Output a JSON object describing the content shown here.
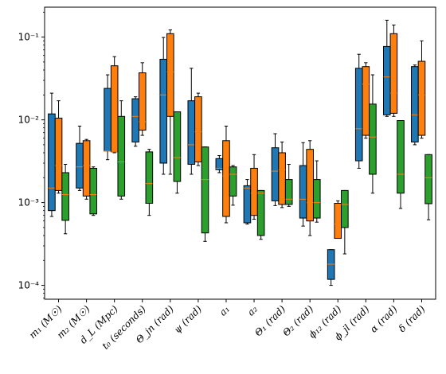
{
  "chart_data": {
    "type": "boxplot",
    "yscale": "log",
    "ylim": [
      6.8e-05,
      0.23
    ],
    "yticks": [
      {
        "value": 0.0001,
        "label": "10⁻⁴"
      },
      {
        "value": 0.001,
        "label": "10⁻³"
      },
      {
        "value": 0.01,
        "label": "10⁻²"
      },
      {
        "value": 0.1,
        "label": "10⁻¹"
      }
    ],
    "categories": [
      "m₁ (M☉)",
      "m₂ (M☉)",
      "d_L (Mpc)",
      "t₀ (seconds)",
      "Θ_jn (rad)",
      "ψ (rad)",
      "a₁",
      "a₂",
      "Θ₁ (rad)",
      "Θ₂ (rad)",
      "ϕ₁₂ (rad)",
      "ϕ_jl (rad)",
      "α (rad)",
      "δ (rad)"
    ],
    "series": [
      {
        "color": "#1f77b4",
        "boxes": [
          {
            "whislo": 0.00068,
            "q1": 0.0008,
            "med": 0.0015,
            "q3": 0.0118,
            "whishi": 0.021
          },
          {
            "whislo": 0.0014,
            "q1": 0.0015,
            "med": 0.0027,
            "q3": 0.0052,
            "whishi": 0.0084
          },
          {
            "whislo": 0.0033,
            "q1": 0.0042,
            "med": 0.0042,
            "q3": 0.024,
            "whishi": 0.035
          },
          {
            "whislo": 0.0048,
            "q1": 0.0054,
            "med": 0.011,
            "q3": 0.018,
            "whishi": 0.019
          },
          {
            "whislo": 0.0022,
            "q1": 0.003,
            "med": 0.02,
            "q3": 0.054,
            "whishi": 0.099
          },
          {
            "whislo": 0.0022,
            "q1": 0.0029,
            "med": 0.005,
            "q3": 0.017,
            "whishi": 0.042
          },
          {
            "whislo": 0.0023,
            "q1": 0.0025,
            "med": 0.0026,
            "q3": 0.0034,
            "whishi": 0.0037
          },
          {
            "whislo": 0.00055,
            "q1": 0.00057,
            "med": 0.0015,
            "q3": 0.0016,
            "whishi": 0.0019
          },
          {
            "whislo": 0.00092,
            "q1": 0.00105,
            "med": 0.0024,
            "q3": 0.0046,
            "whishi": 0.0068
          },
          {
            "whislo": 0.00052,
            "q1": 0.00065,
            "med": 0.0011,
            "q3": 0.0028,
            "whishi": 0.0053
          },
          {
            "whislo": 0.0001,
            "q1": 0.000118,
            "med": 0.00018,
            "q3": 0.00027,
            "whishi": 0.00027
          },
          {
            "whislo": 0.0026,
            "q1": 0.0032,
            "med": 0.0078,
            "q3": 0.042,
            "whishi": 0.062
          },
          {
            "whislo": 0.011,
            "q1": 0.0115,
            "med": 0.033,
            "q3": 0.077,
            "whishi": 0.16
          },
          {
            "whislo": 0.005,
            "q1": 0.0054,
            "med": 0.0115,
            "q3": 0.044,
            "whishi": 0.046
          }
        ]
      },
      {
        "color": "#ff7f0e",
        "boxes": [
          {
            "whislo": 0.0013,
            "q1": 0.0014,
            "med": 0.0028,
            "q3": 0.0105,
            "whishi": 0.017
          },
          {
            "whislo": 0.0011,
            "q1": 0.0012,
            "med": 0.0028,
            "q3": 0.0056,
            "whishi": 0.0058
          },
          {
            "whislo": 0.004,
            "q1": 0.0041,
            "med": 0.0041,
            "q3": 0.045,
            "whishi": 0.058
          },
          {
            "whislo": 0.0065,
            "q1": 0.0075,
            "med": 0.0095,
            "q3": 0.037,
            "whishi": 0.049
          },
          {
            "whislo": 0.0022,
            "q1": 0.011,
            "med": 0.038,
            "q3": 0.11,
            "whishi": 0.122
          },
          {
            "whislo": 0.0028,
            "q1": 0.0031,
            "med": 0.0072,
            "q3": 0.019,
            "whishi": 0.021
          },
          {
            "whislo": 0.00057,
            "q1": 0.00068,
            "med": 0.0021,
            "q3": 0.0056,
            "whishi": 0.0084
          },
          {
            "whislo": 0.00063,
            "q1": 0.0007,
            "med": 0.0013,
            "q3": 0.0026,
            "whishi": 0.0038
          },
          {
            "whislo": 0.00087,
            "q1": 0.00095,
            "med": 0.0025,
            "q3": 0.004,
            "whishi": 0.0054
          },
          {
            "whislo": 0.0004,
            "q1": 0.0006,
            "med": 0.001,
            "q3": 0.0044,
            "whishi": 0.0056
          },
          {
            "whislo": 0.00037,
            "q1": 0.00037,
            "med": 0.00055,
            "q3": 0.00098,
            "whishi": 0.00105
          },
          {
            "whislo": 0.006,
            "q1": 0.0065,
            "med": 0.027,
            "q3": 0.044,
            "whishi": 0.049
          },
          {
            "whislo": 0.011,
            "q1": 0.012,
            "med": 0.021,
            "q3": 0.11,
            "whishi": 0.14
          },
          {
            "whislo": 0.006,
            "q1": 0.0065,
            "med": 0.02,
            "q3": 0.051,
            "whishi": 0.09
          }
        ]
      },
      {
        "color": "#2ca02c",
        "boxes": [
          {
            "whislo": 0.00042,
            "q1": 0.00061,
            "med": 0.00125,
            "q3": 0.0023,
            "whishi": 0.0029
          },
          {
            "whislo": 0.0007,
            "q1": 0.00073,
            "med": 0.00125,
            "q3": 0.0026,
            "whishi": 0.0027
          },
          {
            "whislo": 0.0011,
            "q1": 0.0012,
            "med": 0.0031,
            "q3": 0.011,
            "whishi": 0.017
          },
          {
            "whislo": 0.0007,
            "q1": 0.00098,
            "med": 0.0017,
            "q3": 0.0041,
            "whishi": 0.0044
          },
          {
            "whislo": 0.0013,
            "q1": 0.0018,
            "med": 0.0035,
            "q3": 0.0125,
            "whishi": 0.0125
          },
          {
            "whislo": 0.00034,
            "q1": 0.00043,
            "med": 0.0019,
            "q3": 0.0047,
            "whishi": 0.0047
          },
          {
            "whislo": 0.00093,
            "q1": 0.0012,
            "med": 0.0022,
            "q3": 0.0027,
            "whishi": 0.0028
          },
          {
            "whislo": 0.00036,
            "q1": 0.0004,
            "med": 0.0013,
            "q3": 0.0014,
            "whishi": 0.0014
          },
          {
            "whislo": 0.0009,
            "q1": 0.00095,
            "med": 0.0011,
            "q3": 0.0019,
            "whishi": 0.0029
          },
          {
            "whislo": 0.00058,
            "q1": 0.00065,
            "med": 0.001,
            "q3": 0.0019,
            "whishi": 0.0032
          },
          {
            "whislo": 0.00024,
            "q1": 0.0005,
            "med": 0.00095,
            "q3": 0.0014,
            "whishi": 0.0014
          },
          {
            "whislo": 0.0013,
            "q1": 0.0022,
            "med": 0.0062,
            "q3": 0.0155,
            "whishi": 0.035
          },
          {
            "whislo": 0.00085,
            "q1": 0.0013,
            "med": 0.0022,
            "q3": 0.0098,
            "whishi": 0.0098
          },
          {
            "whislo": 0.00062,
            "q1": 0.00097,
            "med": 0.002,
            "q3": 0.0038,
            "whishi": 0.0038
          }
        ]
      }
    ],
    "median_color": "#ff7f0e",
    "title": "",
    "xlabel": "",
    "ylabel": "",
    "grid": false
  }
}
